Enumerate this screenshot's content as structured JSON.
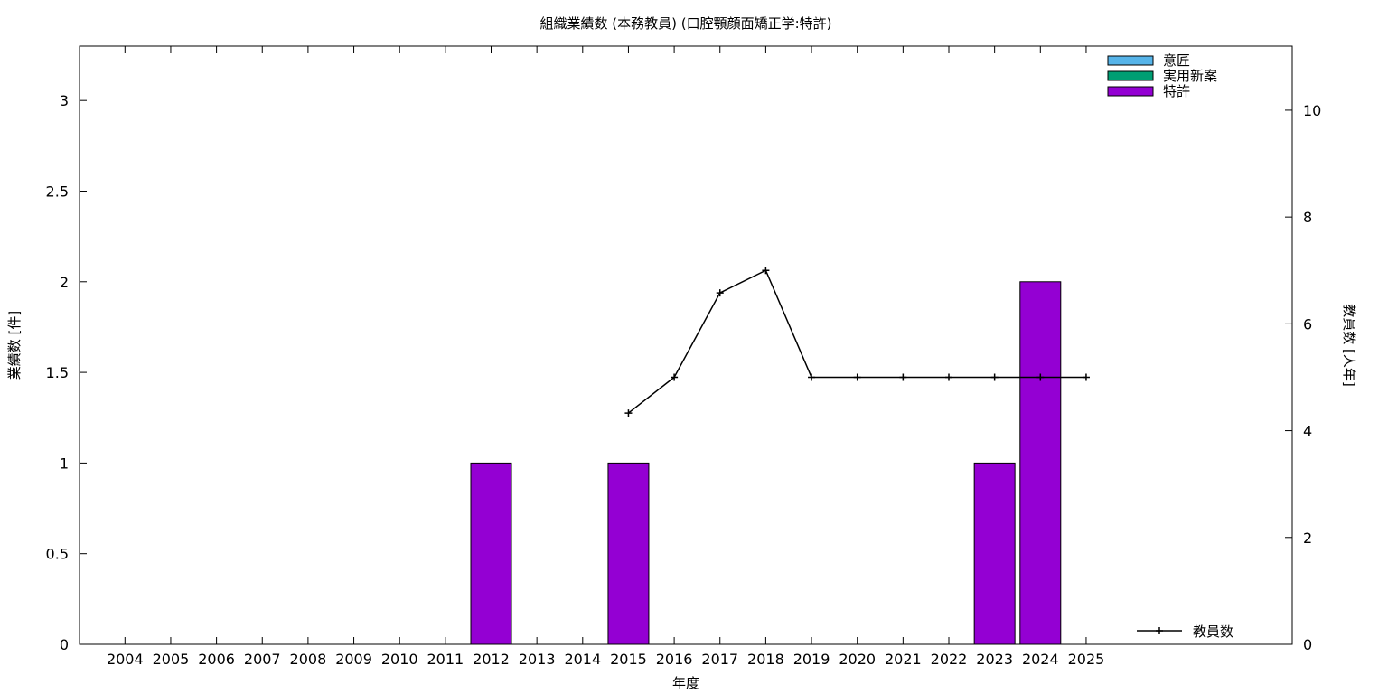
{
  "chart_data": {
    "type": "bar",
    "title": "組織業績数 (本務教員) (口腔顎顔面矯正学:特許)",
    "xlabel": "年度",
    "ylabel": "業績数 [件]",
    "y2label": "教員数 [人年]",
    "categories": [
      "2004",
      "2005",
      "2006",
      "2007",
      "2008",
      "2009",
      "2010",
      "2011",
      "2012",
      "2013",
      "2014",
      "2015",
      "2016",
      "2017",
      "2018",
      "2019",
      "2020",
      "2021",
      "2022",
      "2023",
      "2024",
      "2025"
    ],
    "ylim": [
      0,
      3.3
    ],
    "yticks": [
      "0",
      "0.5",
      "1",
      "1.5",
      "2",
      "2.5",
      "3"
    ],
    "y2lim": [
      0,
      11.2
    ],
    "y2ticks": [
      "0",
      "2",
      "4",
      "6",
      "8",
      "10"
    ],
    "grid": false,
    "legend_position": "top-right",
    "series": [
      {
        "name": "意匠",
        "kind": "bar",
        "color": "#56b4e9",
        "values": [
          0,
          0,
          0,
          0,
          0,
          0,
          0,
          0,
          0,
          0,
          0,
          0,
          0,
          0,
          0,
          0,
          0,
          0,
          0,
          0,
          0,
          0
        ]
      },
      {
        "name": "実用新案",
        "kind": "bar",
        "color": "#009e73",
        "values": [
          0,
          0,
          0,
          0,
          0,
          0,
          0,
          0,
          0,
          0,
          0,
          0,
          0,
          0,
          0,
          0,
          0,
          0,
          0,
          0,
          0,
          0
        ]
      },
      {
        "name": "特許",
        "kind": "bar",
        "color": "#9400d3",
        "values": [
          0,
          0,
          0,
          0,
          0,
          0,
          0,
          0,
          1,
          0,
          0,
          1,
          0,
          0,
          0,
          0,
          0,
          0,
          0,
          1,
          2,
          0
        ]
      }
    ],
    "line_series": {
      "name": "教員数",
      "kind": "line",
      "axis": "right",
      "color": "#000000",
      "x": [
        "2015",
        "2016",
        "2017",
        "2018",
        "2019",
        "2020",
        "2021",
        "2022",
        "2023",
        "2024",
        "2025"
      ],
      "values": [
        4.33,
        5,
        6.58,
        7,
        5,
        5,
        5,
        5,
        5,
        5,
        5
      ]
    }
  }
}
